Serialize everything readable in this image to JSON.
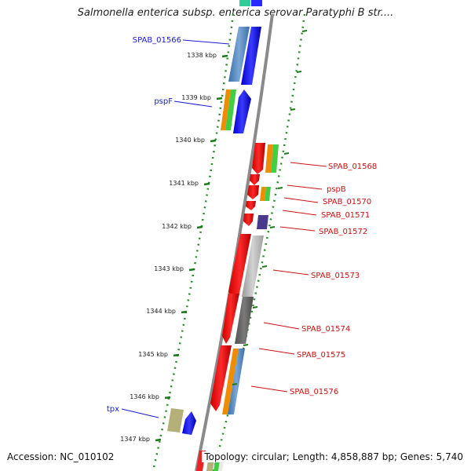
{
  "map": {
    "title": "Salmonella enterica subsp. enterica serovar Paratyphi B str....",
    "accession": "Accession: NC_010102",
    "topology": "Topology: circular; Length: 4,858,887 bp; Genes: 5,740"
  },
  "ticks": [
    "1338 kbp",
    "1339 kbp",
    "1340 kbp",
    "1341 kbp",
    "1342 kbp",
    "1343 kbp",
    "1344 kbp",
    "1345 kbp",
    "1346 kbp",
    "1347 kbp"
  ],
  "genes_forward": [
    {
      "label": "SPAB_01566",
      "color": "#1a1ad6"
    },
    {
      "label": "pspF",
      "color": "#1a1ad6"
    },
    {
      "label": "tpx",
      "color": "#1a1ad6"
    }
  ],
  "genes_reverse": [
    {
      "label": "SPAB_01568",
      "color": "#cc1111"
    },
    {
      "label": "pspB",
      "color": "#cc1111"
    },
    {
      "label": "SPAB_01570",
      "color": "#cc1111"
    },
    {
      "label": "SPAB_01571",
      "color": "#cc1111"
    },
    {
      "label": "SPAB_01572",
      "color": "#cc1111"
    },
    {
      "label": "SPAB_01573",
      "color": "#cc1111"
    },
    {
      "label": "SPAB_01574",
      "color": "#cc1111"
    },
    {
      "label": "SPAB_01575",
      "color": "#cc1111"
    },
    {
      "label": "SPAB_01576",
      "color": "#cc1111"
    }
  ],
  "colors": {
    "forward_cds": "#0000ff",
    "reverse_cds": "#ff0000",
    "backbone": "#888888",
    "tick": "#1a7a1a",
    "dotted_ring": "#2a8a2a",
    "orange_track": "#f08c00",
    "green_track": "#44cc44",
    "steelblue_track": "#5b8fc7",
    "grey_track": "#bbbbbb",
    "purple_track": "#4a3a8c",
    "khaki_track": "#b5b07a"
  }
}
